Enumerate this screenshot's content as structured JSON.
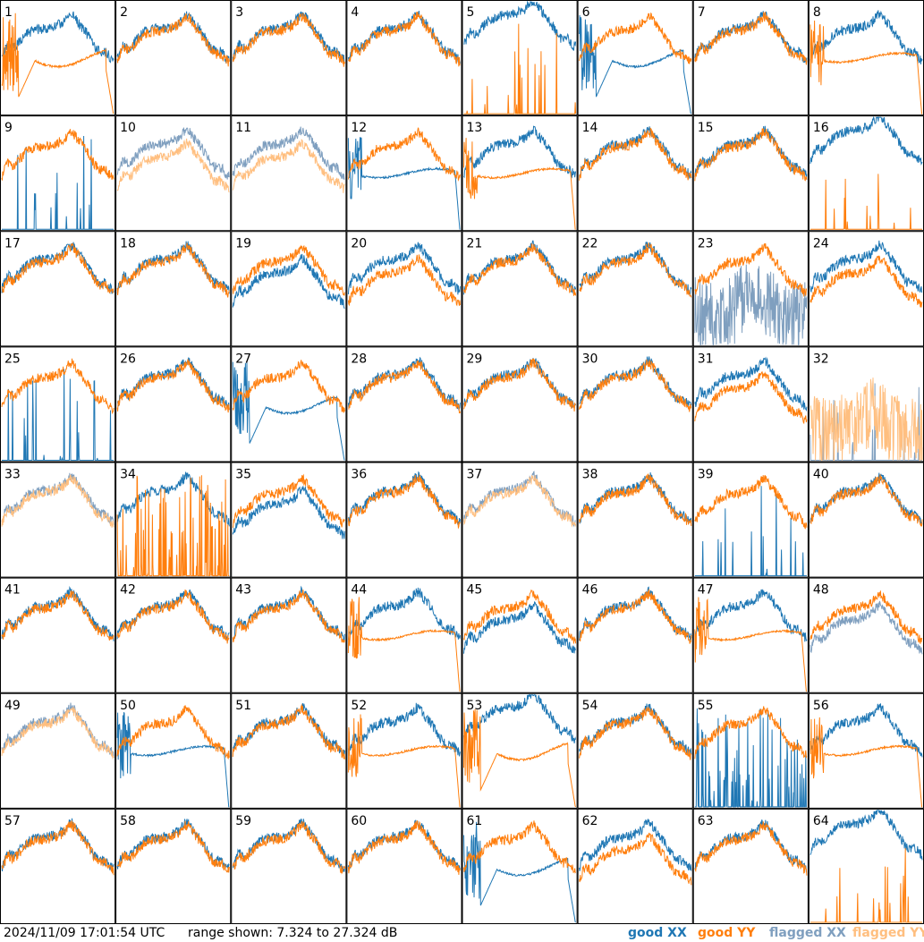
{
  "chart_data": {
    "type": "line",
    "grid": {
      "rows": 8,
      "cols": 8
    },
    "y_range_db": [
      7.324,
      27.324
    ],
    "timestamp": "2024/11/09 17:01:54 UTC",
    "range_text": "range shown: 7.324 to 27.324 dB",
    "legend": [
      {
        "label": "good XX",
        "color": "#1f77b4"
      },
      {
        "label": "good YY",
        "color": "#ff7f0e"
      },
      {
        "label": "flagged XX",
        "color": "#7f9fbf"
      },
      {
        "label": "flagged YY",
        "color": "#ffbf80"
      }
    ],
    "panels": [
      {
        "label": "1",
        "xx": "good",
        "yy": "bad",
        "xxs": "nominal",
        "yys": "dip"
      },
      {
        "label": "2",
        "xx": "good",
        "yy": "good",
        "xxs": "nominal",
        "yys": "nominal"
      },
      {
        "label": "3",
        "xx": "good",
        "yy": "good",
        "xxs": "nominal",
        "yys": "nominal"
      },
      {
        "label": "4",
        "xx": "good",
        "yy": "good",
        "xxs": "nominal",
        "yys": "nominal"
      },
      {
        "label": "5",
        "xx": "good",
        "yy": "bad",
        "xxs": "high",
        "yys": "zero"
      },
      {
        "label": "6",
        "xx": "bad",
        "yy": "good",
        "xxs": "dip",
        "yys": "nominal"
      },
      {
        "label": "7",
        "xx": "good",
        "yy": "good",
        "xxs": "nominal",
        "yys": "nominal"
      },
      {
        "label": "8",
        "xx": "good",
        "yy": "bad",
        "xxs": "nominal",
        "yys": "flat"
      },
      {
        "label": "9",
        "xx": "bad",
        "yy": "good",
        "xxs": "zero",
        "yys": "nominal"
      },
      {
        "label": "10",
        "xx": "flagged",
        "yy": "flagged",
        "xxs": "nominal",
        "yys": "low"
      },
      {
        "label": "11",
        "xx": "flagged",
        "yy": "flagged",
        "xxs": "nominal",
        "yys": "low"
      },
      {
        "label": "12",
        "xx": "bad",
        "yy": "good",
        "xxs": "flat",
        "yys": "nominal"
      },
      {
        "label": "13",
        "xx": "good",
        "yy": "bad",
        "xxs": "nominal",
        "yys": "flat"
      },
      {
        "label": "14",
        "xx": "good",
        "yy": "good",
        "xxs": "nominal",
        "yys": "nominal"
      },
      {
        "label": "15",
        "xx": "good",
        "yy": "good",
        "xxs": "nominal",
        "yys": "nominal"
      },
      {
        "label": "16",
        "xx": "good",
        "yy": "bad",
        "xxs": "high",
        "yys": "zero"
      },
      {
        "label": "17",
        "xx": "good",
        "yy": "good",
        "xxs": "nominal",
        "yys": "nominal"
      },
      {
        "label": "18",
        "xx": "good",
        "yy": "good",
        "xxs": "nominal",
        "yys": "nominal"
      },
      {
        "label": "19",
        "xx": "good",
        "yy": "good",
        "xxs": "low",
        "yys": "nominal"
      },
      {
        "label": "20",
        "xx": "good",
        "yy": "good",
        "xxs": "nominal",
        "yys": "low"
      },
      {
        "label": "21",
        "xx": "good",
        "yy": "good",
        "xxs": "nominal",
        "yys": "nominal"
      },
      {
        "label": "22",
        "xx": "good",
        "yy": "good",
        "xxs": "nominal",
        "yys": "nominal"
      },
      {
        "label": "23",
        "xx": "flagged",
        "yy": "good",
        "xxs": "noisy",
        "yys": "nominal"
      },
      {
        "label": "24",
        "xx": "good",
        "yy": "good",
        "xxs": "nominal",
        "yys": "low"
      },
      {
        "label": "25",
        "xx": "bad",
        "yy": "good",
        "xxs": "zero",
        "yys": "nominal"
      },
      {
        "label": "26",
        "xx": "good",
        "yy": "good",
        "xxs": "nominal",
        "yys": "nominal"
      },
      {
        "label": "27",
        "xx": "bad",
        "yy": "good",
        "xxs": "dip",
        "yys": "nominal"
      },
      {
        "label": "28",
        "xx": "good",
        "yy": "good",
        "xxs": "nominal",
        "yys": "nominal"
      },
      {
        "label": "29",
        "xx": "good",
        "yy": "good",
        "xxs": "nominal",
        "yys": "nominal"
      },
      {
        "label": "30",
        "xx": "good",
        "yy": "good",
        "xxs": "nominal",
        "yys": "nominal"
      },
      {
        "label": "31",
        "xx": "good",
        "yy": "good",
        "xxs": "nominal",
        "yys": "low"
      },
      {
        "label": "32",
        "xx": "flagged",
        "yy": "flagged",
        "xxs": "zero",
        "yys": "noisy"
      },
      {
        "label": "33",
        "xx": "flagged",
        "yy": "flagged",
        "xxs": "nominal",
        "yys": "nominal"
      },
      {
        "label": "34",
        "xx": "good",
        "yy": "bad",
        "xxs": "nominal",
        "yys": "spiky"
      },
      {
        "label": "35",
        "xx": "good",
        "yy": "good",
        "xxs": "low",
        "yys": "nominal"
      },
      {
        "label": "36",
        "xx": "good",
        "yy": "good",
        "xxs": "nominal",
        "yys": "nominal"
      },
      {
        "label": "37",
        "xx": "flagged",
        "yy": "flagged",
        "xxs": "nominal",
        "yys": "nominal"
      },
      {
        "label": "38",
        "xx": "good",
        "yy": "good",
        "xxs": "nominal",
        "yys": "nominal"
      },
      {
        "label": "39",
        "xx": "bad",
        "yy": "good",
        "xxs": "zero",
        "yys": "nominal"
      },
      {
        "label": "40",
        "xx": "good",
        "yy": "good",
        "xxs": "nominal",
        "yys": "nominal"
      },
      {
        "label": "41",
        "xx": "good",
        "yy": "good",
        "xxs": "nominal",
        "yys": "nominal"
      },
      {
        "label": "42",
        "xx": "good",
        "yy": "good",
        "xxs": "nominal",
        "yys": "nominal"
      },
      {
        "label": "43",
        "xx": "good",
        "yy": "good",
        "xxs": "nominal",
        "yys": "nominal"
      },
      {
        "label": "44",
        "xx": "good",
        "yy": "bad",
        "xxs": "nominal",
        "yys": "flat"
      },
      {
        "label": "45",
        "xx": "good",
        "yy": "good",
        "xxs": "low",
        "yys": "nominal"
      },
      {
        "label": "46",
        "xx": "good",
        "yy": "good",
        "xxs": "nominal",
        "yys": "nominal"
      },
      {
        "label": "47",
        "xx": "good",
        "yy": "bad",
        "xxs": "nominal",
        "yys": "flat"
      },
      {
        "label": "48",
        "xx": "flagged",
        "yy": "good",
        "xxs": "low",
        "yys": "nominal"
      },
      {
        "label": "49",
        "xx": "flagged",
        "yy": "flagged",
        "xxs": "nominal",
        "yys": "nominal"
      },
      {
        "label": "50",
        "xx": "bad",
        "yy": "good",
        "xxs": "flat",
        "yys": "nominal"
      },
      {
        "label": "51",
        "xx": "good",
        "yy": "good",
        "xxs": "nominal",
        "yys": "nominal"
      },
      {
        "label": "52",
        "xx": "good",
        "yy": "bad",
        "xxs": "nominal",
        "yys": "flat"
      },
      {
        "label": "53",
        "xx": "good",
        "yy": "bad",
        "xxs": "high",
        "yys": "dip"
      },
      {
        "label": "54",
        "xx": "good",
        "yy": "good",
        "xxs": "nominal",
        "yys": "nominal"
      },
      {
        "label": "55",
        "xx": "bad",
        "yy": "good",
        "xxs": "spiky",
        "yys": "nominal"
      },
      {
        "label": "56",
        "xx": "good",
        "yy": "bad",
        "xxs": "nominal",
        "yys": "flat"
      },
      {
        "label": "57",
        "xx": "good",
        "yy": "good",
        "xxs": "nominal",
        "yys": "nominal"
      },
      {
        "label": "58",
        "xx": "good",
        "yy": "good",
        "xxs": "nominal",
        "yys": "nominal"
      },
      {
        "label": "59",
        "xx": "good",
        "yy": "good",
        "xxs": "nominal",
        "yys": "nominal"
      },
      {
        "label": "60",
        "xx": "good",
        "yy": "good",
        "xxs": "nominal",
        "yys": "nominal"
      },
      {
        "label": "61",
        "xx": "bad",
        "yy": "good",
        "xxs": "dip",
        "yys": "nominal"
      },
      {
        "label": "62",
        "xx": "good",
        "yy": "good",
        "xxs": "nominal",
        "yys": "low"
      },
      {
        "label": "63",
        "xx": "good",
        "yy": "good",
        "xxs": "nominal",
        "yys": "nominal"
      },
      {
        "label": "64",
        "xx": "good",
        "yy": "bad",
        "xxs": "high",
        "yys": "zero"
      }
    ]
  }
}
